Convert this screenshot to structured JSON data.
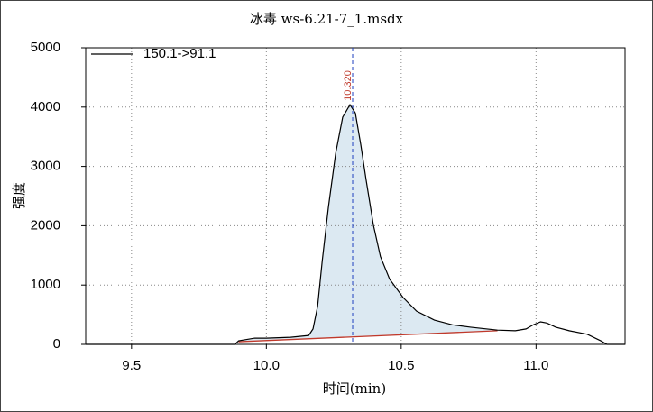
{
  "chart_data": {
    "type": "line",
    "title": "冰毒  ws-6.21-7_1.msdx",
    "xlabel": "时间(min)",
    "ylabel": "强度",
    "x": [
      9.33,
      9.883,
      9.897,
      9.957,
      10.0,
      10.09,
      10.157,
      10.173,
      10.19,
      10.207,
      10.23,
      10.257,
      10.283,
      10.31,
      10.33,
      10.35,
      10.37,
      10.397,
      10.423,
      10.457,
      10.507,
      10.557,
      10.623,
      10.69,
      10.757,
      10.857,
      10.923,
      10.963,
      10.99,
      11.017,
      11.04,
      11.073,
      11.123,
      11.19,
      11.24,
      11.263,
      11.33
    ],
    "series": [
      {
        "name": "150.1->91.1",
        "color": "#000000",
        "values": [
          0,
          0,
          60,
          105,
          105,
          120,
          150,
          260,
          640,
          1400,
          2310,
          3220,
          3830,
          4040,
          3900,
          3370,
          2770,
          2010,
          1480,
          1100,
          790,
          560,
          410,
          330,
          290,
          240,
          230,
          260,
          330,
          380,
          360,
          290,
          230,
          170,
          60,
          0,
          0
        ]
      }
    ],
    "baseline": {
      "x": [
        9.897,
        10.857
      ],
      "values": [
        45,
        230
      ],
      "color": "#c0392b"
    },
    "annotation": {
      "x": {
        "value": 10.32,
        "label": "10.320"
      },
      "color": "#1f3fbf"
    },
    "area_color": "#dce9f2",
    "xlim": [
      9.33,
      11.33
    ],
    "ylim": [
      0,
      5000
    ],
    "xticks": [
      9.5,
      {
        "value": 10,
        "label": "10.0"
      },
      10.5,
      {
        "value": 11,
        "label": "11.0"
      }
    ],
    "yticks": [
      0,
      1000,
      2000,
      3000,
      4000,
      5000
    ],
    "grid": true,
    "legend": "upper left"
  }
}
